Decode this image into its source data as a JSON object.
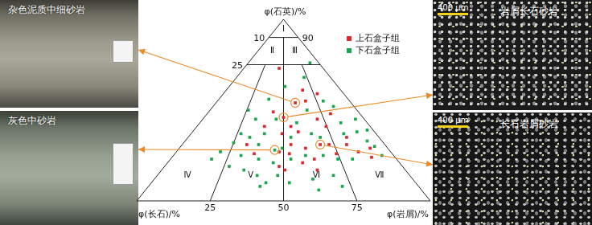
{
  "chart_data": {
    "type": "ternary_scatter",
    "axis_labels": [
      "φ(石英)/%",
      "φ(长石)/%",
      "φ(岩屑)/%"
    ],
    "quartz_lines": [
      {
        "value": 90,
        "labels": [
          "10",
          "90"
        ]
      },
      {
        "value": 75,
        "labels": [
          "25"
        ]
      }
    ],
    "ratio_lines": [
      25,
      50,
      75
    ],
    "fields": [
      "Ⅰ",
      "Ⅱ",
      "Ⅲ",
      "Ⅳ",
      "Ⅴ",
      "Ⅵ",
      "Ⅶ"
    ],
    "legend": "upper right",
    "highlight_color": "#ec8a2a",
    "series": [
      {
        "name": "上石盒子组",
        "color": "#e0262b",
        "marker": "square",
        "values": [
          [
            54,
            19,
            27
          ],
          [
            46,
            27,
            27
          ],
          [
            31,
            22,
            47
          ],
          [
            73,
            15,
            12
          ],
          [
            61,
            13,
            26
          ],
          [
            49,
            29,
            22
          ],
          [
            59,
            9,
            32
          ],
          [
            55,
            15,
            30
          ],
          [
            41,
            36,
            23
          ],
          [
            41,
            27,
            32
          ],
          [
            37,
            32,
            31
          ],
          [
            38,
            26,
            36
          ],
          [
            45,
            16,
            39
          ],
          [
            41,
            15,
            44
          ],
          [
            31,
            32,
            37
          ],
          [
            29,
            28,
            43
          ],
          [
            31,
            19,
            50
          ],
          [
            35,
            11,
            54
          ],
          [
            26,
            19,
            55
          ],
          [
            27,
            11,
            62
          ],
          [
            23,
            28,
            49
          ],
          [
            27,
            38,
            35
          ],
          [
            21,
            33,
            46
          ],
          [
            29,
            6,
            65
          ],
          [
            24,
            8,
            68
          ],
          [
            17,
            30,
            53
          ],
          [
            19,
            42,
            39
          ],
          [
            31,
            47,
            22
          ],
          [
            26,
            47,
            27
          ],
          [
            26,
            35,
            39
          ],
          [
            31,
            13,
            56
          ],
          [
            48,
            10,
            42
          ],
          [
            17,
            41,
            42
          ]
        ]
      },
      {
        "name": "下石盒子组",
        "color": "#1aa64a",
        "marker": "square",
        "values": [
          [
            28,
            39,
            33
          ],
          [
            68,
            9,
            23
          ],
          [
            63,
            18,
            19
          ],
          [
            76,
            3,
            21
          ],
          [
            56,
            27,
            17
          ],
          [
            50,
            37,
            13
          ],
          [
            45,
            37,
            18
          ],
          [
            45,
            30,
            25
          ],
          [
            50,
            17,
            33
          ],
          [
            52,
            7,
            41
          ],
          [
            43,
            9,
            48
          ],
          [
            38,
            6,
            56
          ],
          [
            37,
            38,
            25
          ],
          [
            37,
            46,
            17
          ],
          [
            32,
            51,
            17
          ],
          [
            35,
            44,
            21
          ],
          [
            31,
            43,
            26
          ],
          [
            35,
            30,
            35
          ],
          [
            37,
            22,
            41
          ],
          [
            35,
            20,
            45
          ],
          [
            37,
            11,
            52
          ],
          [
            45,
            3,
            52
          ],
          [
            33,
            5,
            62
          ],
          [
            30,
            4,
            66
          ],
          [
            25,
            4,
            71
          ],
          [
            25,
            52,
            23
          ],
          [
            23,
            47,
            30
          ],
          [
            21,
            43,
            36
          ],
          [
            23,
            36,
            41
          ],
          [
            25,
            30,
            45
          ],
          [
            25,
            24,
            51
          ],
          [
            23,
            20,
            57
          ],
          [
            23,
            15,
            62
          ],
          [
            27,
            58,
            15
          ],
          [
            19,
            59,
            22
          ],
          [
            17,
            55,
            28
          ],
          [
            14,
            45,
            41
          ],
          [
            10,
            43,
            47
          ],
          [
            12,
            34,
            54
          ],
          [
            14,
            26,
            60
          ],
          [
            8,
            26,
            66
          ],
          [
            6,
            35,
            59
          ],
          [
            10,
            51,
            39
          ],
          [
            23,
            63,
            14
          ],
          [
            14,
            52,
            34
          ],
          [
            39,
            2,
            59
          ],
          [
            43,
            24,
            33
          ],
          [
            55,
            9,
            36
          ],
          [
            29,
            36,
            35
          ],
          [
            8,
            54,
            38
          ]
        ]
      }
    ]
  },
  "panels": [
    {
      "label": "杂色泥质中细砂岩",
      "kind": "core",
      "point": [
        54,
        19,
        27
      ]
    },
    {
      "label": "灰色中砂岩",
      "kind": "core",
      "point": [
        28,
        39,
        33
      ]
    },
    {
      "label": "岩屑长石砂岩",
      "kind": "thin_section",
      "scale_bar": "400 μm",
      "point": [
        46,
        27,
        27
      ]
    },
    {
      "label": "长石岩屑砂岩",
      "kind": "thin_section",
      "scale_bar": "400 μm",
      "point": [
        31,
        22,
        47
      ]
    }
  ]
}
